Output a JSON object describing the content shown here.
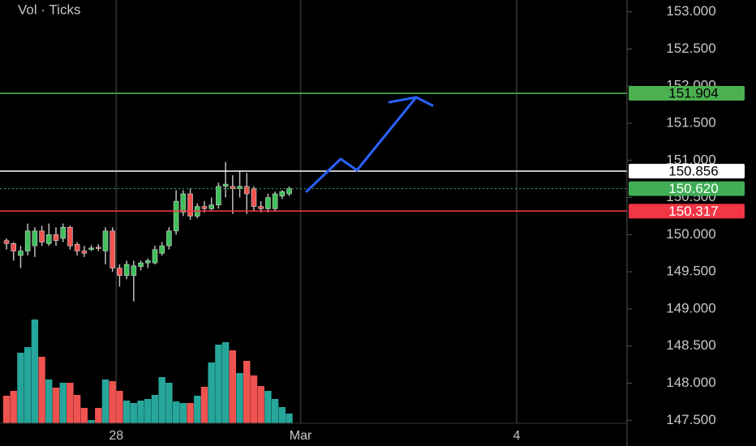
{
  "chart_data": {
    "type": "candlestick",
    "indicator_label": "Vol · Ticks",
    "xlim": [
      -0.92,
      87.8
    ],
    "xticks": [
      {
        "value": 15.52,
        "label": "28"
      },
      {
        "value": 41.61,
        "label": "Mar"
      },
      {
        "value": 72.18,
        "label": "4"
      }
    ],
    "ylim": [
      147.46,
      153.16
    ],
    "yticks": [
      {
        "value": 147.5,
        "label": "147.500"
      },
      {
        "value": 148,
        "label": "148.000"
      },
      {
        "value": 148.5,
        "label": "148.500"
      },
      {
        "value": 149,
        "label": "149.000"
      },
      {
        "value": 149.5,
        "label": "149.500"
      },
      {
        "value": 150,
        "label": "150.000"
      },
      {
        "value": 150.5,
        "label": "150.500"
      },
      {
        "value": 151,
        "label": "151.000"
      },
      {
        "value": 151.5,
        "label": "151.500"
      },
      {
        "value": 152,
        "label": "152.000"
      },
      {
        "value": 152.5,
        "label": "152.500"
      },
      {
        "value": 153,
        "label": "153.000"
      }
    ],
    "up_color": "#3fbf5a",
    "down_color": "#f0524f",
    "candles": {
      "open": [
        149.92,
        149.88,
        149.72,
        149.78,
        149.85,
        150.05,
        149.88,
        150.0,
        149.95,
        150.1,
        149.87,
        149.78,
        149.8,
        149.83,
        149.78,
        150.05,
        149.55,
        149.45,
        149.45,
        149.57,
        149.62,
        149.62,
        149.75,
        149.85,
        150.05,
        150.3,
        150.55,
        150.25,
        150.38,
        150.35,
        150.4,
        150.65,
        150.65,
        150.62,
        150.65,
        150.62,
        150.38,
        150.35,
        150.35,
        150.52,
        150.55
      ],
      "high": [
        149.95,
        149.9,
        149.85,
        150.15,
        150.1,
        150.12,
        150.15,
        150.1,
        150.15,
        150.12,
        149.9,
        149.85,
        149.86,
        149.87,
        150.1,
        150.1,
        149.6,
        149.65,
        149.65,
        149.65,
        149.68,
        149.85,
        149.9,
        150.1,
        150.6,
        150.6,
        150.62,
        150.42,
        150.45,
        150.5,
        150.7,
        150.98,
        150.8,
        150.85,
        150.83,
        150.65,
        150.45,
        150.55,
        150.58,
        150.6,
        150.65
      ],
      "low": [
        149.8,
        149.65,
        149.55,
        149.72,
        149.7,
        149.85,
        149.85,
        149.85,
        149.9,
        149.8,
        149.72,
        149.7,
        149.78,
        149.78,
        149.6,
        149.5,
        149.3,
        149.4,
        149.1,
        149.52,
        149.55,
        149.6,
        149.72,
        149.8,
        150.0,
        150.25,
        150.2,
        150.22,
        150.3,
        150.33,
        150.35,
        150.5,
        150.28,
        150.5,
        150.28,
        150.32,
        150.3,
        150.3,
        150.32,
        150.48,
        150.52
      ],
      "close": [
        149.88,
        149.78,
        149.78,
        150.05,
        150.05,
        149.9,
        150.0,
        149.92,
        150.1,
        149.85,
        149.78,
        149.75,
        149.82,
        149.82,
        150.05,
        149.55,
        149.45,
        149.6,
        149.58,
        149.62,
        149.65,
        149.8,
        149.85,
        150.05,
        150.45,
        150.55,
        150.25,
        150.38,
        150.35,
        150.4,
        150.65,
        150.68,
        150.62,
        150.65,
        150.55,
        150.38,
        150.35,
        150.5,
        150.55,
        150.58,
        150.62
      ]
    },
    "volume": {
      "ylim": [
        0,
        180
      ],
      "up_color": "#26a69a",
      "down_color": "#ef5350",
      "values": [
        34,
        40,
        87,
        94,
        128,
        82,
        54,
        44,
        50,
        50,
        35,
        19,
        4,
        19,
        54,
        52,
        40,
        28,
        25,
        28,
        30,
        35,
        57,
        50,
        27,
        25,
        25,
        34,
        45,
        75,
        97,
        100,
        90,
        62,
        77,
        59,
        46,
        40,
        30,
        20,
        12
      ]
    },
    "price_lines": [
      {
        "value": 151.904,
        "color": "#4caf50",
        "text_color": "#000000",
        "style": "solid"
      },
      {
        "value": 150.856,
        "color": "#ffffff",
        "text_color": "#000000",
        "style": "solid"
      },
      {
        "value": 150.62,
        "label": "150.620",
        "color": "#3fae55",
        "text_color": "#ffffff",
        "style": "dotted"
      },
      {
        "value": 150.317,
        "color": "#f23645",
        "text_color": "#ffffff",
        "style": "solid"
      }
    ]
  }
}
